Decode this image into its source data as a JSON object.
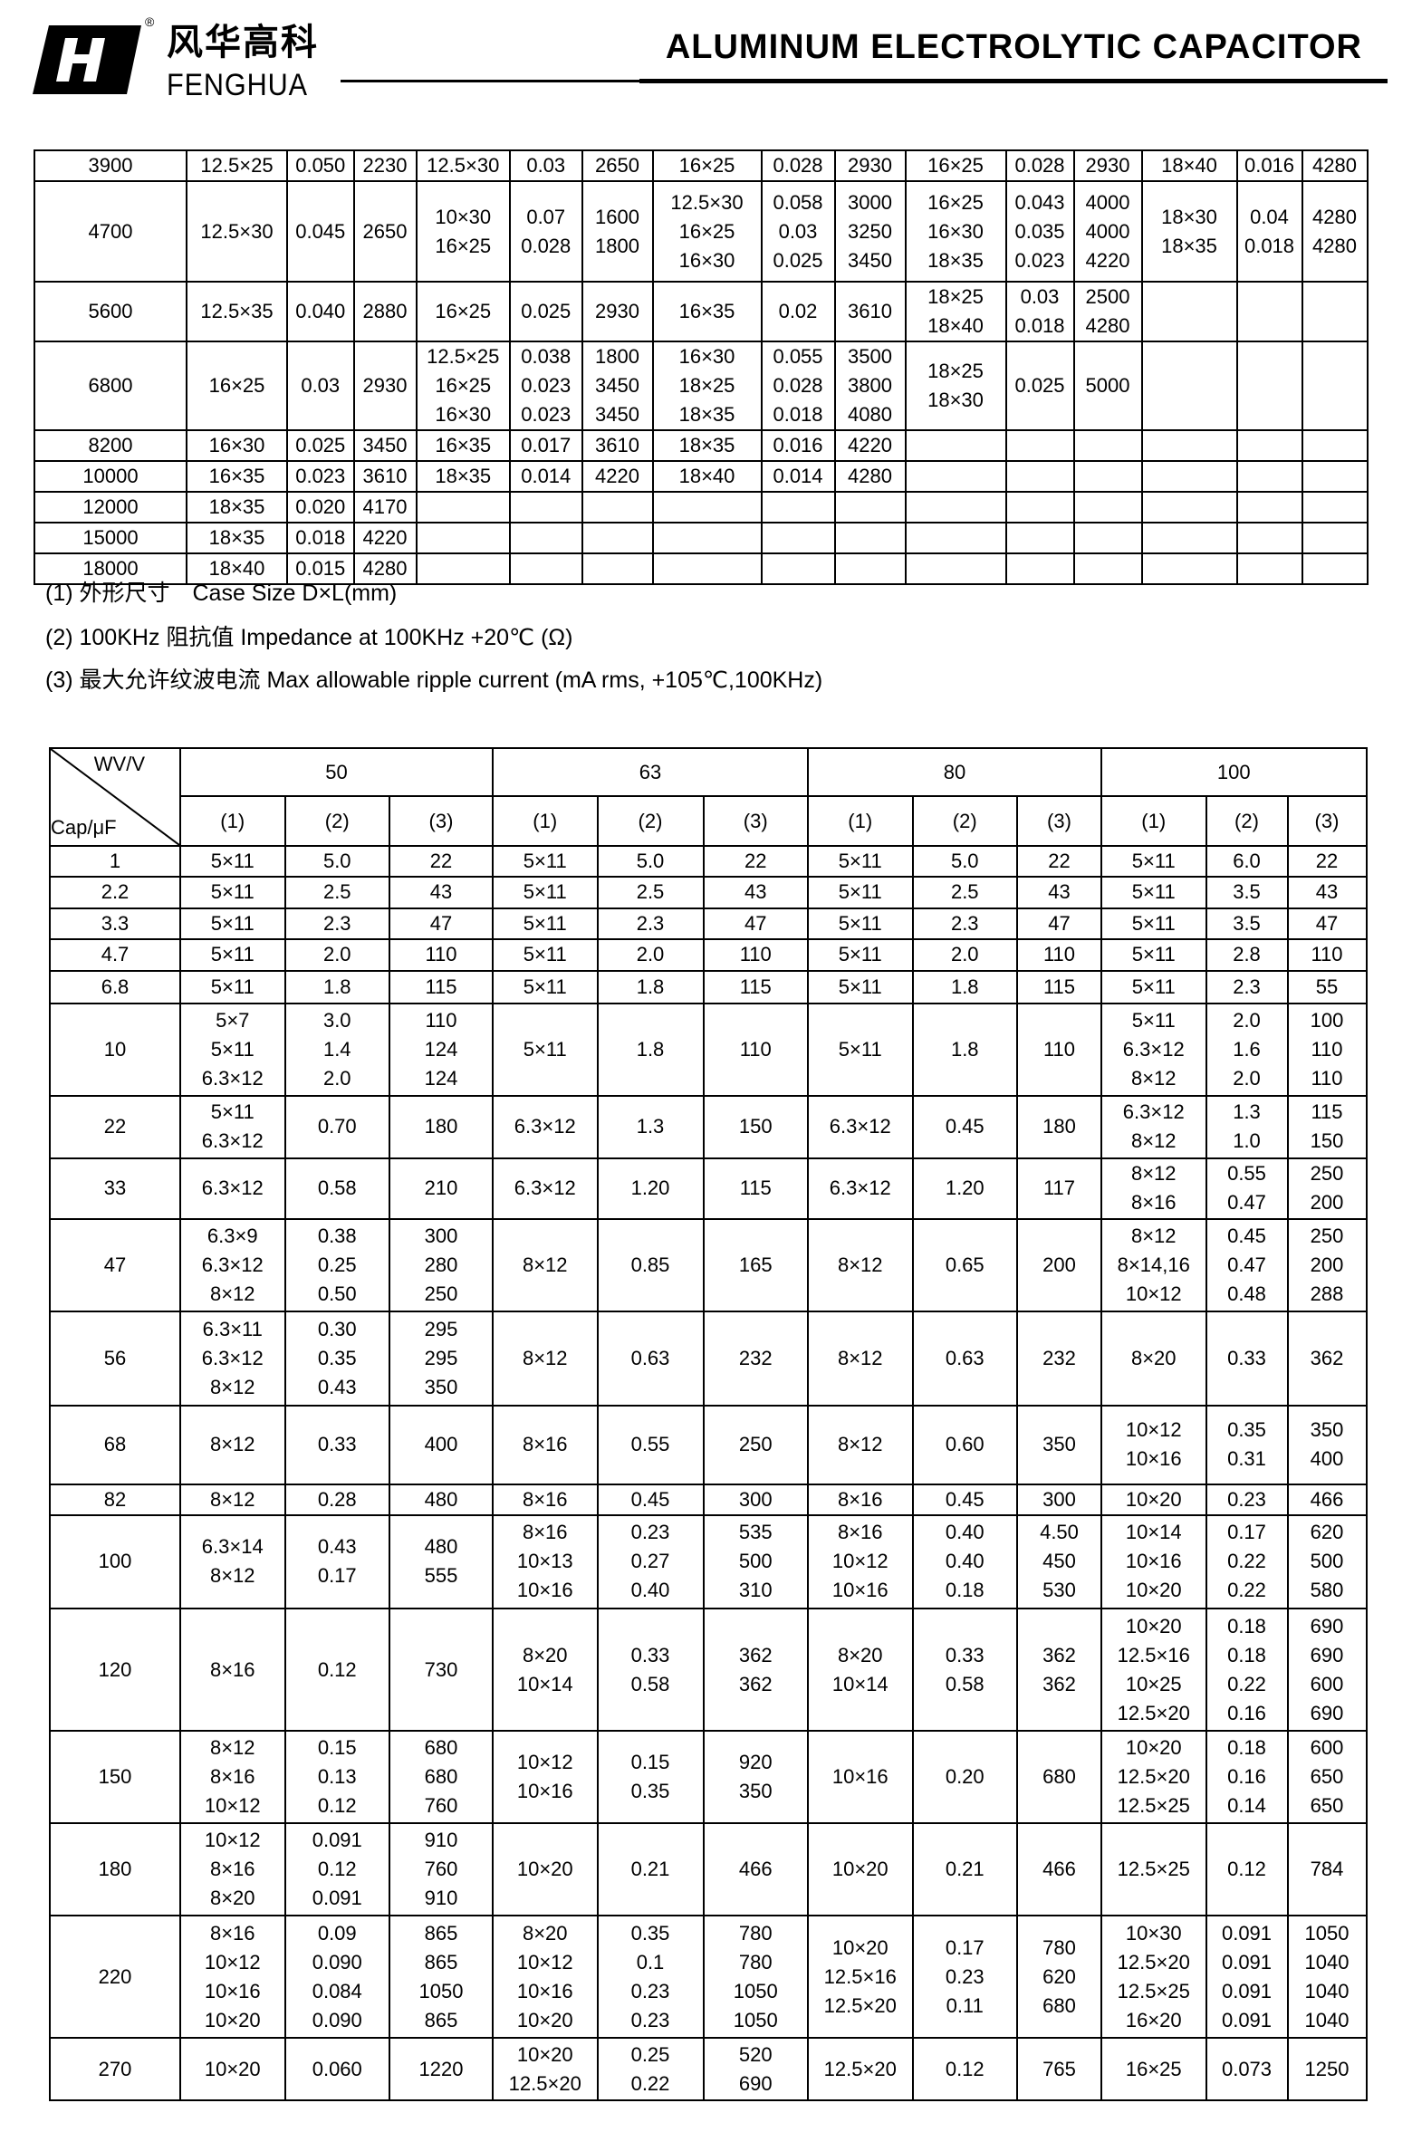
{
  "header": {
    "brand_cn": "风华高科",
    "brand_en": "FENGHUA",
    "registered_mark": "®",
    "title": "ALUMINUM ELECTROLYTIC CAPACITOR"
  },
  "top_table": {
    "rows": [
      [
        "3900",
        "12.5×25",
        "0.050",
        "2230",
        "12.5×30",
        "0.03",
        "2650",
        "16×25",
        "0.028",
        "2930",
        "16×25",
        "0.028",
        "2930",
        "18×40",
        "0.016",
        "4280"
      ],
      [
        "4700",
        "12.5×30",
        "0.045",
        "2650",
        "10×30\n16×25",
        "0.07\n0.028",
        "1600\n1800",
        "12.5×30\n16×25\n16×30",
        "0.058\n0.03\n0.025",
        "3000\n3250\n3450",
        "16×25\n16×30\n18×35",
        "0.043\n0.035\n0.023",
        "4000\n4000\n4220",
        "18×30\n18×35",
        "0.04\n0.018",
        "4280\n4280"
      ],
      [
        "5600",
        "12.5×35",
        "0.040",
        "2880",
        "16×25",
        "0.025",
        "2930",
        "16×35",
        "0.02",
        "3610",
        "18×25\n18×40",
        "0.03\n0.018",
        "2500\n4280",
        "",
        "",
        ""
      ],
      [
        "6800",
        "16×25",
        "0.03",
        "2930",
        "12.5×25\n16×25\n16×30",
        "0.038\n0.023\n0.023",
        "1800\n3450\n3450",
        "16×30\n18×25\n18×35",
        "0.055\n0.028\n0.018",
        "3500\n3800\n4080",
        "18×25\n18×30",
        "0.025",
        "5000",
        "",
        "",
        ""
      ],
      [
        "8200",
        "16×30",
        "0.025",
        "3450",
        "16×35",
        "0.017",
        "3610",
        "18×35",
        "0.016",
        "4220",
        "",
        "",
        "",
        "",
        "",
        ""
      ],
      [
        "10000",
        "16×35",
        "0.023",
        "3610",
        "18×35",
        "0.014",
        "4220",
        "18×40",
        "0.014",
        "4280",
        "",
        "",
        "",
        "",
        "",
        ""
      ],
      [
        "12000",
        "18×35",
        "0.020",
        "4170",
        "",
        "",
        "",
        "",
        "",
        "",
        "",
        "",
        "",
        "",
        "",
        ""
      ],
      [
        "15000",
        "18×35",
        "0.018",
        "4220",
        "",
        "",
        "",
        "",
        "",
        "",
        "",
        "",
        "",
        "",
        "",
        ""
      ],
      [
        "18000",
        "18×40",
        "0.015",
        "4280",
        "",
        "",
        "",
        "",
        "",
        "",
        "",
        "",
        "",
        "",
        "",
        ""
      ]
    ]
  },
  "notes": [
    "(1)  外形尺寸　Case Size D×L(mm)",
    "(2) 100KHz 阻抗值 Impedance at 100KHz +20℃  (Ω)",
    "(3)  最大允许纹波电流  Max allowable ripple current (mA rms, +105℃,100KHz)"
  ],
  "bottom_table": {
    "corner_top": "WV/V",
    "corner_bottom": "Cap/μF",
    "voltages": [
      "50",
      "63",
      "80",
      "100"
    ],
    "sub_headers": [
      "(1)",
      "(2)",
      "(3)"
    ],
    "rows": [
      [
        "1",
        "5×11",
        "5.0",
        "22",
        "5×11",
        "5.0",
        "22",
        "5×11",
        "5.0",
        "22",
        "5×11",
        "6.0",
        "22"
      ],
      [
        "2.2",
        "5×11",
        "2.5",
        "43",
        "5×11",
        "2.5",
        "43",
        "5×11",
        "2.5",
        "43",
        "5×11",
        "3.5",
        "43"
      ],
      [
        "3.3",
        "5×11",
        "2.3",
        "47",
        "5×11",
        "2.3",
        "47",
        "5×11",
        "2.3",
        "47",
        "5×11",
        "3.5",
        "47"
      ],
      [
        "4.7",
        "5×11",
        "2.0",
        "110",
        "5×11",
        "2.0",
        "110",
        "5×11",
        "2.0",
        "110",
        "5×11",
        "2.8",
        "110"
      ],
      [
        "6.8",
        "5×11",
        "1.8",
        "115",
        "5×11",
        "1.8",
        "115",
        "5×11",
        "1.8",
        "115",
        "5×11",
        "2.3",
        "55"
      ],
      [
        "10",
        "5×7\n5×11\n6.3×12",
        "3.0\n1.4\n2.0",
        "110\n124\n124",
        "5×11",
        "1.8",
        "110",
        "5×11",
        "1.8",
        "110",
        "5×11\n6.3×12\n8×12",
        "2.0\n1.6\n2.0",
        "100\n110\n110"
      ],
      [
        "22",
        "5×11\n6.3×12",
        "0.70",
        "180",
        "6.3×12",
        "1.3",
        "150",
        "6.3×12",
        "0.45",
        "180",
        "6.3×12\n8×12",
        "1.3\n1.0",
        "115\n150"
      ],
      [
        "33",
        "6.3×12",
        "0.58",
        "210",
        "6.3×12",
        "1.20",
        "115",
        "6.3×12",
        "1.20",
        "117",
        "8×12\n8×16",
        "0.55\n0.47",
        "250\n200"
      ],
      [
        "47",
        "6.3×9\n6.3×12\n8×12",
        "0.38\n0.25\n0.50",
        "300\n280\n250",
        "8×12",
        "0.85",
        "165",
        "8×12",
        "0.65",
        "200",
        "8×12\n8×14,16\n10×12",
        "0.45\n0.47\n0.48",
        "250\n200\n288"
      ],
      [
        "56",
        "6.3×11\n6.3×12\n8×12",
        "0.30\n0.35\n0.43",
        "295\n295\n350",
        "8×12",
        "0.63",
        "232",
        "8×12",
        "0.63",
        "232",
        "8×20",
        "0.33",
        "362"
      ],
      [
        "68",
        "8×12",
        "0.33",
        "400",
        "8×16",
        "0.55",
        "250",
        "8×12",
        "0.60",
        "350",
        "10×12\n10×16",
        "0.35\n0.31",
        "350\n400"
      ],
      [
        "82",
        "8×12",
        "0.28",
        "480",
        "8×16",
        "0.45",
        "300",
        "8×16",
        "0.45",
        "300",
        "10×20",
        "0.23",
        "466"
      ],
      [
        "100",
        "6.3×14\n8×12",
        "0.43\n0.17",
        "480\n555",
        "8×16\n10×13\n10×16",
        "0.23\n0.27\n0.40",
        "535\n500\n310",
        "8×16\n10×12\n10×16",
        "0.40\n0.40\n0.18",
        "4.50\n450\n530",
        "10×14\n10×16\n10×20",
        "0.17\n0.22\n0.22",
        "620\n500\n580"
      ],
      [
        "120",
        "8×16",
        "0.12",
        "730",
        "8×20\n10×14",
        "0.33\n0.58",
        "362\n362",
        "8×20\n10×14",
        "0.33\n0.58",
        "362\n362",
        "10×20\n12.5×16\n10×25\n12.5×20",
        "0.18\n0.18\n0.22\n0.16",
        "690\n690\n600\n690"
      ],
      [
        "150",
        "8×12\n8×16\n10×12",
        "0.15\n0.13\n0.12",
        "680\n680\n760",
        "10×12\n10×16",
        "0.15\n0.35",
        "920\n350",
        "10×16",
        "0.20",
        "680",
        "10×20\n12.5×20\n12.5×25",
        "0.18\n0.16\n0.14",
        "600\n650\n650"
      ],
      [
        "180",
        "10×12\n8×16\n8×20",
        "0.091\n0.12\n0.091",
        "910\n760\n910",
        "10×20",
        "0.21",
        "466",
        "10×20",
        "0.21",
        "466",
        "12.5×25",
        "0.12",
        "784"
      ],
      [
        "220",
        "8×16\n10×12\n10×16\n10×20",
        "0.09\n0.090\n0.084\n0.090",
        "865\n865\n1050\n865",
        "8×20\n10×12\n10×16\n10×20",
        "0.35\n0.1\n0.23\n0.23",
        "780\n780\n1050\n1050",
        "10×20\n12.5×16\n12.5×20",
        "0.17\n0.23\n0.11",
        "780\n620\n680",
        "10×30\n12.5×20\n12.5×25\n16×20",
        "0.091\n0.091\n0.091\n0.091",
        "1050\n1040\n1040\n1040"
      ],
      [
        "270",
        "10×20",
        "0.060",
        "1220",
        "10×20\n12.5×20",
        "0.25\n0.22",
        "520\n690",
        "12.5×20",
        "0.12",
        "765",
        "16×25",
        "0.073",
        "1250"
      ]
    ]
  }
}
